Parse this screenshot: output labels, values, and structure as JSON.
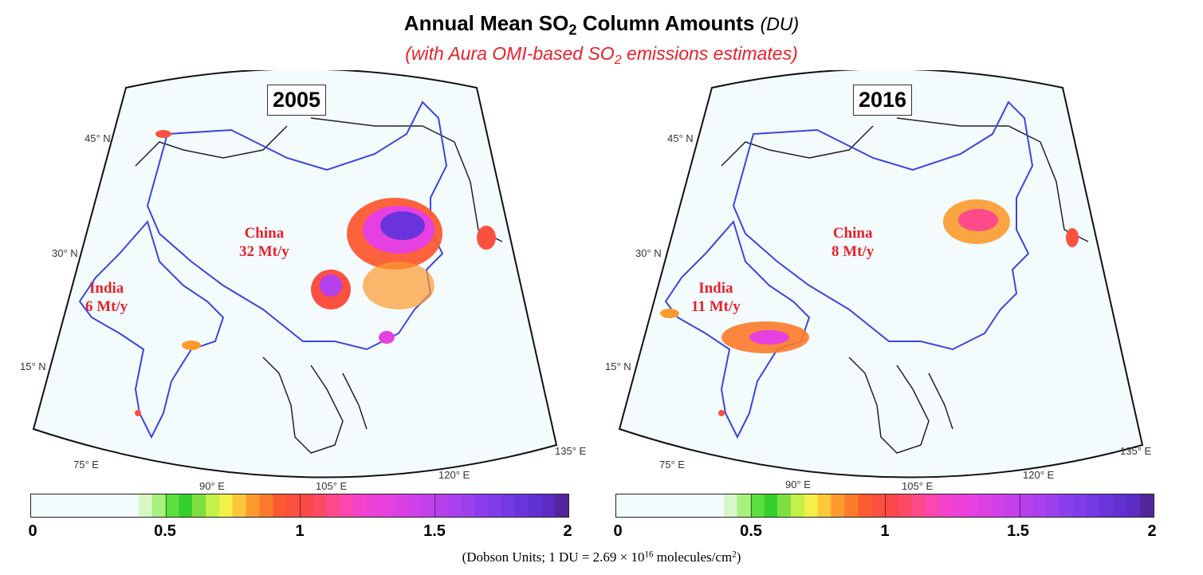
{
  "title": {
    "main": "Annual Mean SO",
    "sub": "2",
    "rest": " Column Amounts ",
    "unit": "(DU)"
  },
  "subtitle": {
    "pre": "(with Aura OMI-based SO",
    "sub": "2",
    "post": " emissions estimates)"
  },
  "panels": [
    {
      "year": "2005",
      "labels": [
        {
          "name": "China",
          "value": "32 Mt/y"
        },
        {
          "name": "India",
          "value": "6 Mt/y"
        }
      ]
    },
    {
      "year": "2016",
      "labels": [
        {
          "name": "China",
          "value": "8 Mt/y"
        },
        {
          "name": "India",
          "value": "11 Mt/y"
        }
      ]
    }
  ],
  "latitudes": [
    "45",
    "30",
    "15"
  ],
  "longitudes": [
    "75",
    "90",
    "105",
    "120",
    "135"
  ],
  "lat_suffix": "N",
  "lon_suffix": "E",
  "colorbar": {
    "ticks": [
      "0",
      "0.5",
      "1",
      "1.5",
      "2"
    ],
    "colors": [
      "#f4fbfd",
      "#f4fbfd",
      "#f4fbfd",
      "#f4fbfd",
      "#f4fbfd",
      "#f4fbfd",
      "#f4fbfd",
      "#f4fbfd",
      "#d8f7c8",
      "#a8f080",
      "#5be040",
      "#36d02e",
      "#7ee040",
      "#c4f04a",
      "#f4f04a",
      "#fcc83a",
      "#fc9a2e",
      "#fc7a2a",
      "#fc5a30",
      "#fc5040",
      "#fc4848",
      "#fc4a66",
      "#fc4a8a",
      "#fc46b0",
      "#f442cc",
      "#ec40d8",
      "#e640e0",
      "#dc40e4",
      "#d040e8",
      "#c440ea",
      "#b640ec",
      "#aa40ee",
      "#9c40ee",
      "#8c3eee",
      "#803cea",
      "#7438e4",
      "#6a34dc",
      "#6230d0",
      "#5a2cc4",
      "#54269e"
    ]
  },
  "footnote": {
    "text": "(Dobson Units; 1 DU = 2.69 × 10",
    "sup": "16",
    "post": " molecules/cm",
    "sup2": "2",
    "end": ")"
  }
}
